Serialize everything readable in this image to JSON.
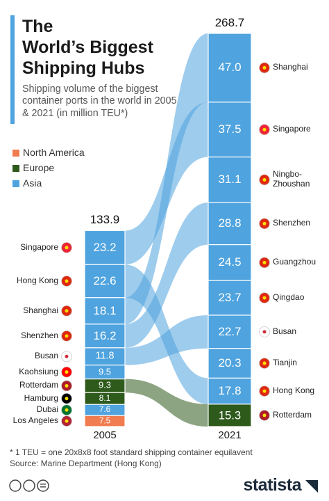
{
  "chart_data": {
    "type": "port-flow",
    "title": [
      "The",
      "World’s Biggest",
      "Shipping Hubs"
    ],
    "subtitle": "Shipping volume of the biggest container ports in the world in 2005 & 2021 (in million TEU*)",
    "legend": [
      {
        "name": "North America",
        "color": "#f07c4f"
      },
      {
        "name": "Europe",
        "color": "#2e5a1c"
      },
      {
        "name": "Asia",
        "color": "#4fa3de"
      }
    ],
    "categories": [
      "2005",
      "2021"
    ],
    "totals": [
      133.9,
      268.7
    ],
    "columns": [
      {
        "ports": [
          "Singapore",
          "Hong Kong",
          "Shanghai",
          "Shenzhen",
          "Busan",
          "Kaohsiung",
          "Rotterdam",
          "Hamburg",
          "Dubai",
          "Los Angeles"
        ],
        "regions": [
          "Asia",
          "Asia",
          "Asia",
          "Asia",
          "Asia",
          "Asia",
          "Europe",
          "Europe",
          "Asia",
          "North America"
        ],
        "values": [
          23.2,
          22.6,
          18.1,
          16.2,
          11.8,
          9.5,
          9.3,
          8.1,
          7.6,
          7.5
        ],
        "value_labels": [
          "23.2",
          "22.6",
          "18.1",
          "16.2",
          "11.8",
          "9.5",
          "9.3",
          "8.1",
          "7.6",
          "7.5"
        ]
      },
      {
        "ports": [
          "Shanghai",
          "Singapore",
          "Ningbo-Zhoushan",
          "Shenzhen",
          "Guangzhou",
          "Qingdao",
          "Busan",
          "Tianjin",
          "Hong Kong",
          "Rotterdam"
        ],
        "regions": [
          "Asia",
          "Asia",
          "Asia",
          "Asia",
          "Asia",
          "Asia",
          "Asia",
          "Asia",
          "Asia",
          "Europe"
        ],
        "values": [
          47.0,
          37.5,
          31.1,
          28.8,
          24.5,
          23.7,
          22.7,
          20.3,
          17.8,
          15.3
        ],
        "value_labels": [
          "47.0",
          "37.5",
          "31.1",
          "28.8",
          "24.5",
          "23.7",
          "22.7",
          "20.3",
          "17.8",
          "15.3"
        ]
      }
    ],
    "footnote": "* 1 TEU = one 20x8x8 foot standard shipping container equilavent",
    "source": "Source: Marine Department (Hong Kong)",
    "brand": "statista"
  }
}
